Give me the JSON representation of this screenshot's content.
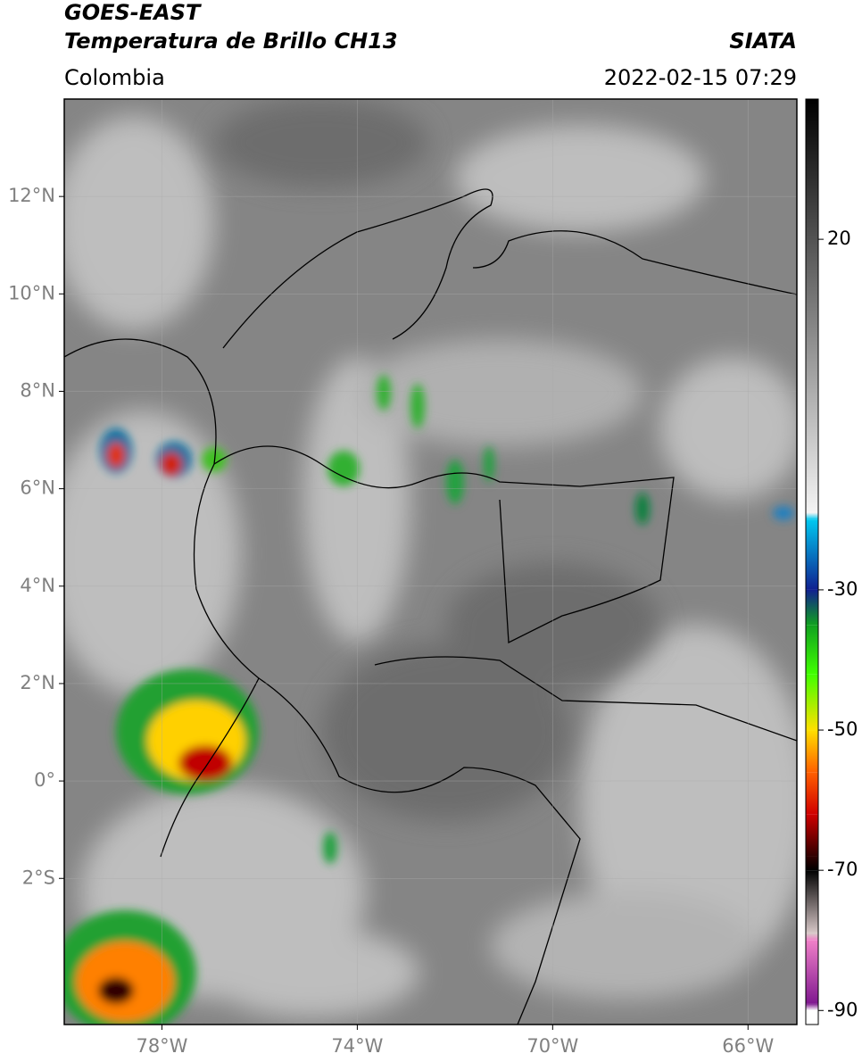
{
  "header": {
    "satellite": "GOES-EAST",
    "product": "Temperatura de Brillo CH13",
    "agency": "SIATA",
    "region": "Colombia",
    "datetime": "2022-02-15 07:29"
  },
  "map": {
    "xlim": [
      -80,
      -65
    ],
    "ylim": [
      -5,
      14
    ],
    "xticks": [
      {
        "value": -78,
        "label": "78°W"
      },
      {
        "value": -74,
        "label": "74°W"
      },
      {
        "value": -70,
        "label": "70°W"
      },
      {
        "value": -66,
        "label": "66°W"
      }
    ],
    "yticks": [
      {
        "value": 12,
        "label": "12°N"
      },
      {
        "value": 10,
        "label": "10°N"
      },
      {
        "value": 8,
        "label": "8°N"
      },
      {
        "value": 6,
        "label": "6°N"
      },
      {
        "value": 4,
        "label": "4°N"
      },
      {
        "value": 2,
        "label": "2°N"
      },
      {
        "value": 0,
        "label": "0°"
      },
      {
        "value": -2,
        "label": "2°S"
      }
    ],
    "grid": true
  },
  "colorbar": {
    "clim": [
      -92,
      40
    ],
    "ticks": [
      20,
      -30,
      -50,
      -70,
      -90
    ],
    "colormap": [
      {
        "value": 40,
        "color": "#000000"
      },
      {
        "value": -19,
        "color": "#f4f4f4"
      },
      {
        "value": -20,
        "color": "#00c8f0"
      },
      {
        "value": -30,
        "color": "#102090"
      },
      {
        "value": -35,
        "color": "#10a020"
      },
      {
        "value": -42,
        "color": "#40ff00"
      },
      {
        "value": -50,
        "color": "#ffe000"
      },
      {
        "value": -56,
        "color": "#ff6000"
      },
      {
        "value": -62,
        "color": "#d00000"
      },
      {
        "value": -68,
        "color": "#300000"
      },
      {
        "value": -70,
        "color": "#000000"
      },
      {
        "value": -79,
        "color": "#d8c8c8"
      },
      {
        "value": -80,
        "color": "#f080c8"
      },
      {
        "value": -89,
        "color": "#801890"
      },
      {
        "value": -90,
        "color": "#ffffff"
      },
      {
        "value": -92,
        "color": "#ffffff"
      }
    ]
  }
}
